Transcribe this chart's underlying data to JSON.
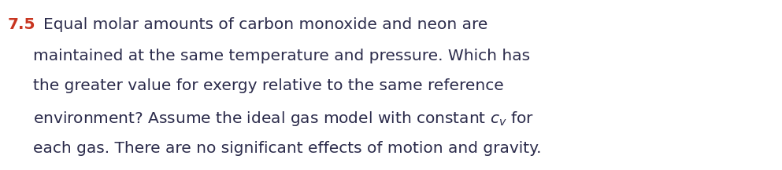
{
  "background_color": "#ffffff",
  "number_text": "7.5",
  "number_color": "#c83520",
  "body_color": "#2b2b4b",
  "font_size": 14.5,
  "number_font_size": 14.5,
  "line1_plain": "Equal molar amounts of carbon monoxide and neon are",
  "line2_plain": "maintained at the same temperature and pressure. Which has",
  "line3_plain": "the greater value for exergy relative to the same reference",
  "line4_pre": "environment? Assume the ideal gas model with constant ",
  "line4_post": " for",
  "line5_plain": "each gas. There are no significant effects of motion and gravity.",
  "fig_width": 9.93,
  "fig_height": 2.17,
  "dpi": 100
}
